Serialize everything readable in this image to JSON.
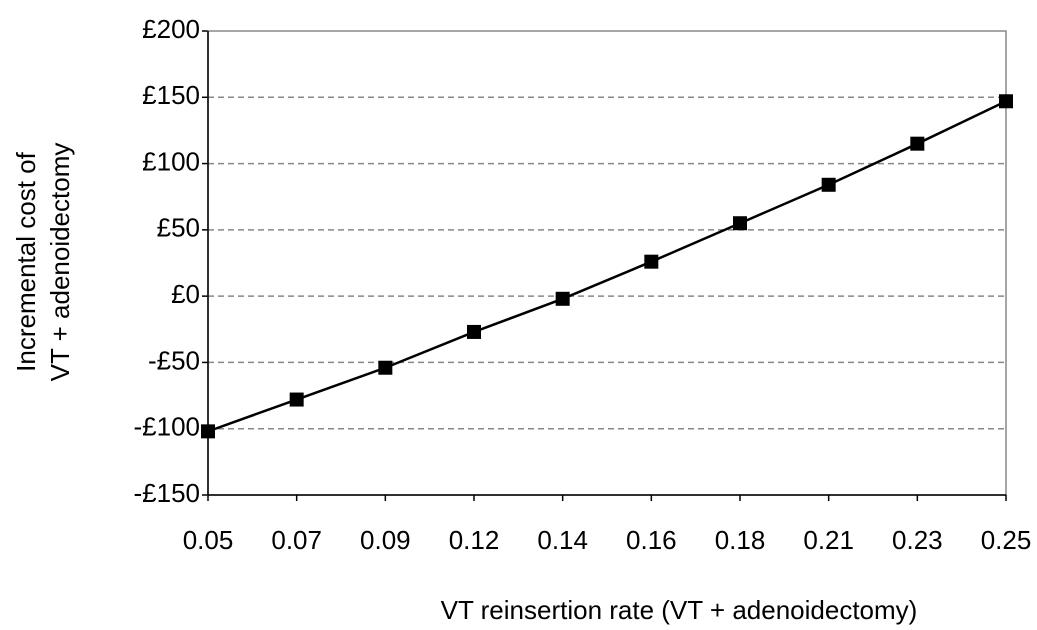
{
  "chart_data": {
    "type": "line",
    "categories": [
      "0.05",
      "0.07",
      "0.09",
      "0.12",
      "0.14",
      "0.16",
      "0.18",
      "0.21",
      "0.23",
      "0.25"
    ],
    "series": [
      {
        "color": "#000000",
        "values": [
          -102,
          -78,
          -54,
          -27,
          -2,
          26,
          55,
          84,
          115,
          147
        ]
      }
    ],
    "xlabel": "VT reinsertion rate (VT + adenoidectomy)",
    "ylabel": [
      "Incremental cost of",
      "VT + adenoidectomy"
    ],
    "ylim": [
      -150,
      200
    ],
    "yticks": [
      {
        "value": -150,
        "label": "-£150"
      },
      {
        "value": -100,
        "label": "-£100"
      },
      {
        "value": -50,
        "label": "-£50"
      },
      {
        "value": 0,
        "label": "£0"
      },
      {
        "value": 50,
        "label": "£50"
      },
      {
        "value": 100,
        "label": "£100"
      },
      {
        "value": 150,
        "label": "£150"
      },
      {
        "value": 200,
        "label": "£200"
      }
    ],
    "grid": true
  }
}
